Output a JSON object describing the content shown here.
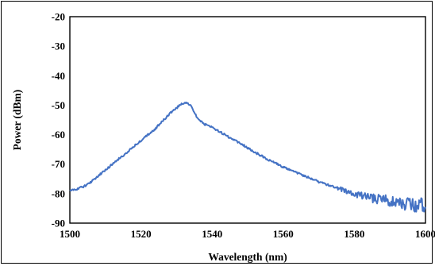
{
  "chart_data": {
    "type": "line",
    "title": "",
    "xlabel": "Wavelength (nm)",
    "ylabel": "Power (dBm)",
    "xlim": [
      1500,
      1600
    ],
    "ylim": [
      -90,
      -20
    ],
    "x_ticks": [
      "1500",
      "1520",
      "1540",
      "1560",
      "1580",
      "1600"
    ],
    "y_ticks": [
      "-20",
      "-30",
      "-40",
      "-50",
      "-60",
      "-70",
      "-80",
      "-90"
    ],
    "grid": false,
    "legend": "none",
    "series": [
      {
        "color": "#4472C4",
        "x": [
          1500,
          1502,
          1504,
          1506,
          1508,
          1510,
          1512,
          1514,
          1516,
          1518,
          1520,
          1522,
          1524,
          1526,
          1528,
          1530,
          1531,
          1532,
          1533,
          1534,
          1535,
          1536,
          1537,
          1538,
          1540,
          1542,
          1545,
          1548,
          1550,
          1555,
          1560,
          1565,
          1570,
          1575,
          1580,
          1585,
          1590,
          1595,
          1600
        ],
        "y": [
          -79,
          -78.5,
          -77.5,
          -76,
          -74,
          -72,
          -70,
          -68,
          -66,
          -64,
          -62,
          -60,
          -58,
          -55.5,
          -53,
          -51,
          -50,
          -49.3,
          -49.3,
          -50,
          -52.5,
          -54.5,
          -55.5,
          -56.5,
          -57.5,
          -59,
          -61,
          -63,
          -64.5,
          -68,
          -71,
          -73.5,
          -76,
          -78,
          -80,
          -81.5,
          -82.5,
          -83.5,
          -84.5
        ]
      }
    ]
  }
}
